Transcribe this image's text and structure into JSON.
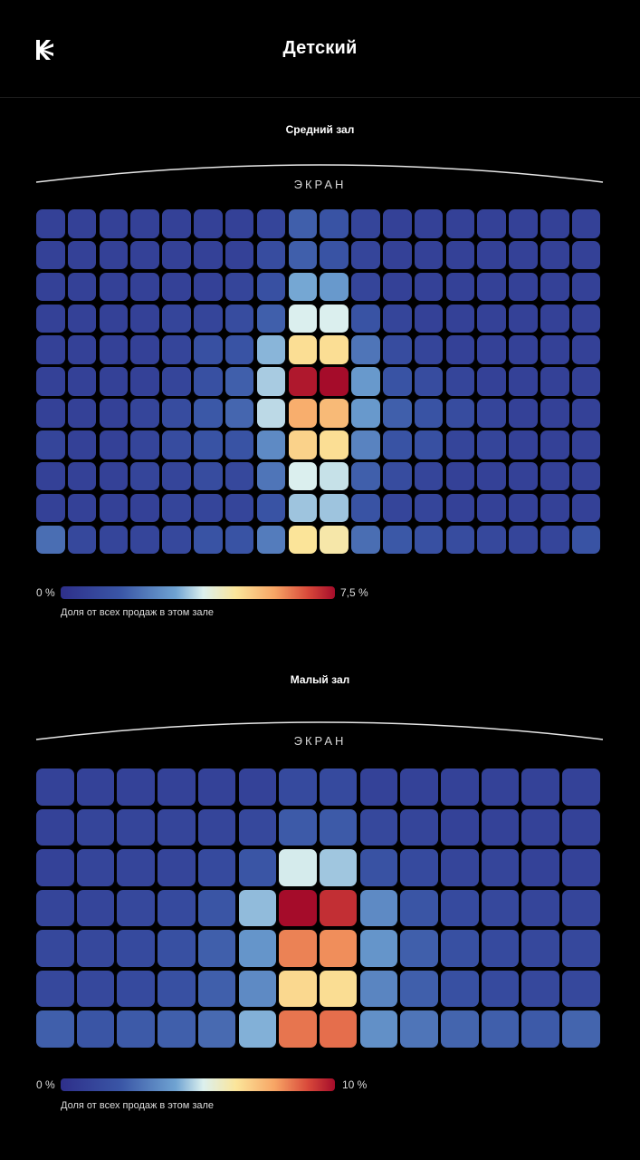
{
  "header": {
    "title": "Детский",
    "logo_icon": "kinopoisk-logo-icon"
  },
  "screen_label": "ЭКРАН",
  "color_scale": [
    "#2e2f8a",
    "#3a56a6",
    "#6fa3d2",
    "#dcf0ee",
    "#fbe59a",
    "#f7a565",
    "#d94a3b",
    "#a50c2a"
  ],
  "chart_data": [
    {
      "type": "heatmap",
      "title": "Средний зал",
      "scale": {
        "min": 0,
        "max": 7.5,
        "min_label": "0 %",
        "max_label": "7,5 %",
        "caption": "Доля от всех продаж в этом зале"
      },
      "rows": 11,
      "cols": 18,
      "values": [
        [
          0.5,
          0.5,
          0.5,
          0.5,
          0.5,
          0.5,
          0.5,
          0.6,
          1.2,
          1.0,
          0.6,
          0.5,
          0.5,
          0.5,
          0.5,
          0.5,
          0.5,
          0.5
        ],
        [
          0.5,
          0.5,
          0.5,
          0.5,
          0.5,
          0.5,
          0.5,
          0.8,
          1.2,
          1.0,
          0.6,
          0.5,
          0.5,
          0.5,
          0.5,
          0.5,
          0.5,
          0.5
        ],
        [
          0.5,
          0.5,
          0.5,
          0.5,
          0.5,
          0.5,
          0.6,
          0.9,
          2.2,
          2.0,
          0.6,
          0.5,
          0.5,
          0.5,
          0.5,
          0.5,
          0.5,
          0.5
        ],
        [
          0.5,
          0.5,
          0.5,
          0.5,
          0.6,
          0.6,
          0.8,
          1.2,
          3.2,
          3.2,
          1.0,
          0.6,
          0.5,
          0.5,
          0.5,
          0.5,
          0.5,
          0.5
        ],
        [
          0.5,
          0.5,
          0.5,
          0.5,
          0.6,
          0.9,
          1.0,
          2.4,
          4.4,
          4.4,
          1.5,
          0.8,
          0.6,
          0.5,
          0.5,
          0.5,
          0.5,
          0.5
        ],
        [
          0.5,
          0.5,
          0.5,
          0.5,
          0.6,
          0.9,
          1.2,
          2.7,
          7.3,
          7.5,
          2.0,
          1.0,
          0.8,
          0.6,
          0.5,
          0.5,
          0.5,
          0.5
        ],
        [
          0.5,
          0.5,
          0.5,
          0.6,
          0.8,
          1.1,
          1.3,
          2.9,
          5.2,
          5.0,
          2.0,
          1.2,
          1.0,
          0.8,
          0.6,
          0.5,
          0.5,
          0.5
        ],
        [
          0.6,
          0.5,
          0.5,
          0.6,
          0.8,
          1.0,
          1.0,
          1.8,
          4.6,
          4.4,
          1.7,
          1.0,
          0.9,
          0.6,
          0.6,
          0.5,
          0.5,
          0.5
        ],
        [
          0.5,
          0.5,
          0.5,
          0.6,
          0.6,
          0.8,
          0.7,
          1.5,
          3.2,
          3.0,
          1.2,
          0.8,
          0.6,
          0.5,
          0.5,
          0.5,
          0.5,
          0.5
        ],
        [
          0.5,
          0.5,
          0.5,
          0.5,
          0.6,
          0.6,
          0.6,
          1.0,
          2.6,
          2.6,
          1.0,
          0.6,
          0.6,
          0.5,
          0.5,
          0.5,
          0.5,
          0.5
        ],
        [
          1.4,
          0.7,
          0.6,
          0.6,
          0.7,
          1.0,
          1.0,
          1.6,
          4.3,
          4.1,
          1.4,
          1.1,
          0.9,
          0.8,
          0.7,
          0.6,
          0.6,
          1.0
        ]
      ]
    },
    {
      "type": "heatmap",
      "title": "Малый зал",
      "scale": {
        "min": 0,
        "max": 10,
        "min_label": "0 %",
        "max_label": "10 %",
        "caption": "Доля от всех продаж в этом зале"
      },
      "rows": 7,
      "cols": 14,
      "values": [
        [
          0.7,
          0.7,
          0.7,
          0.7,
          0.7,
          0.7,
          1.0,
          1.0,
          0.7,
          0.7,
          0.7,
          0.7,
          0.7,
          0.7
        ],
        [
          0.7,
          0.8,
          0.8,
          0.8,
          0.8,
          0.9,
          1.5,
          1.5,
          0.9,
          0.8,
          0.7,
          0.7,
          0.7,
          0.7
        ],
        [
          0.7,
          0.8,
          0.8,
          0.8,
          1.0,
          1.4,
          4.2,
          3.5,
          1.3,
          1.0,
          0.8,
          0.8,
          0.7,
          0.7
        ],
        [
          0.8,
          0.8,
          0.9,
          1.0,
          1.4,
          3.3,
          10.0,
          9.2,
          2.4,
          1.4,
          1.0,
          0.9,
          0.8,
          0.8
        ],
        [
          0.9,
          0.9,
          1.0,
          1.2,
          1.6,
          2.6,
          7.7,
          7.5,
          2.6,
          1.6,
          1.2,
          1.0,
          0.9,
          0.9
        ],
        [
          0.9,
          0.9,
          1.0,
          1.2,
          1.6,
          2.4,
          6.0,
          5.9,
          2.3,
          1.6,
          1.2,
          1.0,
          0.9,
          0.9
        ],
        [
          1.6,
          1.4,
          1.5,
          1.6,
          1.8,
          3.1,
          7.9,
          8.0,
          2.5,
          2.0,
          1.7,
          1.6,
          1.5,
          1.7
        ]
      ]
    }
  ]
}
